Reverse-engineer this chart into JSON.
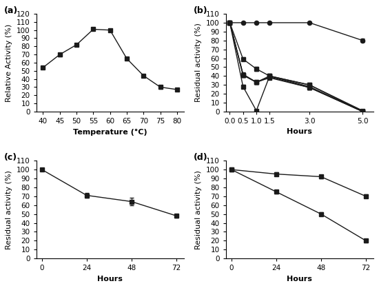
{
  "panel_a": {
    "label": "(a)",
    "x": [
      40,
      45,
      50,
      55,
      60,
      65,
      70,
      75,
      80
    ],
    "y": [
      54,
      70,
      82,
      101,
      100,
      65,
      44,
      30,
      27
    ],
    "yerr": [
      2,
      2,
      2,
      1.5,
      1.5,
      2,
      2,
      2,
      2
    ],
    "xlabel": "Temperature (°C)",
    "ylabel": "Relative Activity (%)",
    "xlim": [
      38,
      82
    ],
    "ylim": [
      0,
      120
    ],
    "yticks": [
      0,
      10,
      20,
      30,
      40,
      50,
      60,
      70,
      80,
      90,
      100,
      110,
      120
    ],
    "xticks": [
      40,
      45,
      50,
      55,
      60,
      65,
      70,
      75,
      80
    ]
  },
  "panel_b": {
    "label": "(b)",
    "series": [
      {
        "x": [
          0,
          0.5,
          1,
          1.5,
          3,
          5
        ],
        "y": [
          100,
          41,
          33,
          40,
          28,
          0
        ],
        "yerr": [
          1,
          2,
          2,
          2,
          2,
          0.5
        ],
        "marker": "s"
      },
      {
        "x": [
          0,
          0.5,
          1,
          1.5,
          3,
          5
        ],
        "y": [
          100,
          59,
          48,
          40,
          30,
          0
        ],
        "yerr": [
          1,
          2,
          2,
          2,
          2,
          0.5
        ],
        "marker": "s"
      },
      {
        "x": [
          0,
          0.5,
          1,
          1.5,
          3,
          5
        ],
        "y": [
          100,
          42,
          33,
          39,
          27,
          0
        ],
        "yerr": [
          1,
          2,
          2,
          2,
          2,
          0.5
        ],
        "marker": "^"
      },
      {
        "x": [
          0,
          0.5,
          1,
          1.5,
          3,
          5
        ],
        "y": [
          100,
          28,
          1,
          40,
          30,
          1
        ],
        "yerr": [
          1,
          2,
          0.5,
          2,
          2,
          0.5
        ],
        "marker": "s"
      },
      {
        "x": [
          0,
          0.5,
          1,
          1.5,
          3,
          5
        ],
        "y": [
          100,
          41,
          33,
          38,
          27,
          0
        ],
        "yerr": [
          1,
          2,
          2,
          2,
          2,
          0.5
        ],
        "marker": "s"
      },
      {
        "x": [
          0,
          0.5,
          1,
          1.5,
          3,
          5
        ],
        "y": [
          100,
          100,
          100,
          100,
          100,
          80
        ],
        "yerr": [
          1,
          1,
          1,
          1,
          1,
          2
        ],
        "marker": "o"
      }
    ],
    "xlabel": "Hours",
    "ylabel": "Residual activity (%)",
    "xlim": [
      -0.15,
      5.4
    ],
    "ylim": [
      0,
      110
    ],
    "yticks": [
      0,
      10,
      20,
      30,
      40,
      50,
      60,
      70,
      80,
      90,
      100,
      110
    ],
    "xticks": [
      0,
      0.5,
      1,
      1.5,
      3,
      5
    ]
  },
  "panel_c": {
    "label": "(c)",
    "x": [
      0,
      24,
      48,
      72
    ],
    "y": [
      100,
      71,
      64,
      48
    ],
    "yerr": [
      0.5,
      3,
      4,
      2
    ],
    "xlabel": "Hours",
    "ylabel": "Residual activity (%)",
    "xlim": [
      -3,
      76
    ],
    "ylim": [
      0,
      110
    ],
    "yticks": [
      0,
      10,
      20,
      30,
      40,
      50,
      60,
      70,
      80,
      90,
      100,
      110
    ],
    "xticks": [
      0,
      24,
      48,
      72
    ]
  },
  "panel_d": {
    "label": "(d)",
    "series": [
      {
        "x": [
          0,
          24,
          48,
          72
        ],
        "y": [
          100,
          95,
          92,
          70
        ],
        "yerr": [
          0.5,
          2,
          2,
          2
        ],
        "marker": "s"
      },
      {
        "x": [
          0,
          24,
          48,
          72
        ],
        "y": [
          100,
          75,
          50,
          20
        ],
        "yerr": [
          0.5,
          2,
          2,
          2
        ],
        "marker": "s"
      }
    ],
    "xlabel": "Hours",
    "ylabel": "Residual activity (%)",
    "xlim": [
      -3,
      76
    ],
    "ylim": [
      0,
      110
    ],
    "yticks": [
      0,
      10,
      20,
      30,
      40,
      50,
      60,
      70,
      80,
      90,
      100,
      110
    ],
    "xticks": [
      0,
      24,
      48,
      72
    ]
  },
  "line_color": "#1a1a1a",
  "marker_color": "#1a1a1a",
  "markersize": 4.5,
  "linewidth": 1.0,
  "capsize": 2,
  "elinewidth": 0.8,
  "label_fontsize": 8,
  "tick_fontsize": 7.5,
  "panel_label_fontsize": 9
}
